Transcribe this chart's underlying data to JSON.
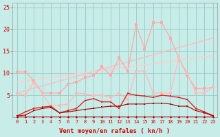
{
  "xlabel": "Vent moyen/en rafales ( kn/h )",
  "bg_color": "#c8ede8",
  "grid_color": "#a0ccc8",
  "label_color": "#cc0000",
  "tick_color": "#cc0000",
  "xlim": [
    -0.5,
    23.5
  ],
  "ylim": [
    0,
    26
  ],
  "x_ticks": [
    0,
    1,
    2,
    3,
    4,
    5,
    6,
    7,
    8,
    9,
    10,
    11,
    12,
    13,
    14,
    15,
    16,
    17,
    18,
    19,
    20,
    21,
    22,
    23
  ],
  "y_ticks": [
    5,
    10,
    15,
    20,
    25
  ],
  "series": [
    {
      "name": "light_pink_jagged_high",
      "x": [
        0,
        1,
        2,
        3,
        4,
        5,
        6,
        7,
        8,
        9,
        10,
        11,
        12,
        13,
        14,
        15,
        16,
        17,
        18,
        19,
        20,
        21,
        22,
        23
      ],
      "y": [
        10.3,
        10.3,
        8.3,
        5.5,
        5.5,
        5.5,
        7.5,
        8.0,
        9.0,
        9.5,
        11.5,
        9.5,
        13.5,
        10.5,
        21.0,
        15.5,
        21.5,
        21.5,
        18.0,
        13.5,
        9.5,
        6.5,
        6.5,
        6.8
      ],
      "color": "#ffaaaa",
      "linewidth": 1.0,
      "marker": "s",
      "markersize": 2.5,
      "zorder": 3
    },
    {
      "name": "light_pink_straight_upper",
      "x": [
        0,
        23
      ],
      "y": [
        5.5,
        18.0
      ],
      "color": "#ffbbbb",
      "linewidth": 1.0,
      "marker": null,
      "zorder": 2
    },
    {
      "name": "light_pink_straight_lower",
      "x": [
        0,
        23
      ],
      "y": [
        8.0,
        14.0
      ],
      "color": "#ffcccc",
      "linewidth": 1.0,
      "marker": null,
      "zorder": 2
    },
    {
      "name": "medium_pink_jagged",
      "x": [
        0,
        1,
        2,
        3,
        4,
        5,
        6,
        7,
        8,
        9,
        10,
        11,
        12,
        13,
        14,
        15,
        16,
        17,
        18,
        19,
        20,
        21,
        22,
        23
      ],
      "y": [
        5.5,
        5.0,
        8.0,
        5.3,
        2.5,
        2.7,
        3.0,
        5.5,
        5.3,
        5.0,
        5.0,
        4.5,
        5.5,
        4.0,
        10.5,
        10.5,
        5.5,
        5.5,
        5.5,
        13.5,
        10.0,
        5.5,
        5.5,
        6.8
      ],
      "color": "#ffbbbb",
      "linewidth": 1.0,
      "marker": "s",
      "markersize": 2.5,
      "zorder": 3
    },
    {
      "name": "dark_red_jagged",
      "x": [
        0,
        1,
        2,
        3,
        4,
        5,
        6,
        7,
        8,
        9,
        10,
        11,
        12,
        13,
        14,
        15,
        16,
        17,
        18,
        19,
        20,
        21,
        22,
        23
      ],
      "y": [
        0.3,
        1.2,
        2.0,
        2.3,
        2.5,
        1.0,
        1.5,
        2.0,
        3.8,
        4.2,
        3.5,
        3.5,
        2.0,
        5.4,
        5.0,
        4.8,
        4.5,
        5.0,
        4.8,
        4.5,
        4.0,
        2.0,
        1.2,
        0.4
      ],
      "color": "#dd2222",
      "linewidth": 1.0,
      "marker": "s",
      "markersize": 2.0,
      "zorder": 4
    },
    {
      "name": "dark_red_flat1",
      "x": [
        0,
        1,
        2,
        3,
        4,
        5,
        6,
        7,
        8,
        9,
        10,
        11,
        12,
        13,
        14,
        15,
        16,
        17,
        18,
        19,
        20,
        21,
        22,
        23
      ],
      "y": [
        0.3,
        0.5,
        1.5,
        2.0,
        2.2,
        1.0,
        1.2,
        1.5,
        1.8,
        2.0,
        2.3,
        2.5,
        2.5,
        3.0,
        3.0,
        3.0,
        3.2,
        3.2,
        3.0,
        2.5,
        2.5,
        1.5,
        1.0,
        0.3
      ],
      "color": "#aa0000",
      "linewidth": 0.8,
      "marker": "s",
      "markersize": 2.0,
      "zorder": 4
    },
    {
      "name": "red_bottom_dots",
      "x": [
        0,
        1,
        2,
        3,
        4,
        5,
        6,
        7,
        8,
        9,
        10,
        11,
        12,
        13,
        14,
        15,
        16,
        17,
        18,
        19,
        20,
        21,
        22,
        23
      ],
      "y": [
        0.15,
        0.15,
        0.15,
        0.15,
        0.15,
        0.15,
        0.15,
        0.15,
        0.15,
        0.15,
        0.15,
        0.15,
        0.15,
        0.15,
        0.15,
        0.15,
        0.15,
        0.15,
        0.15,
        0.15,
        0.15,
        0.15,
        0.15,
        0.15
      ],
      "color": "#cc0000",
      "linewidth": 0.5,
      "marker": "^",
      "markersize": 2.5,
      "zorder": 5
    }
  ]
}
